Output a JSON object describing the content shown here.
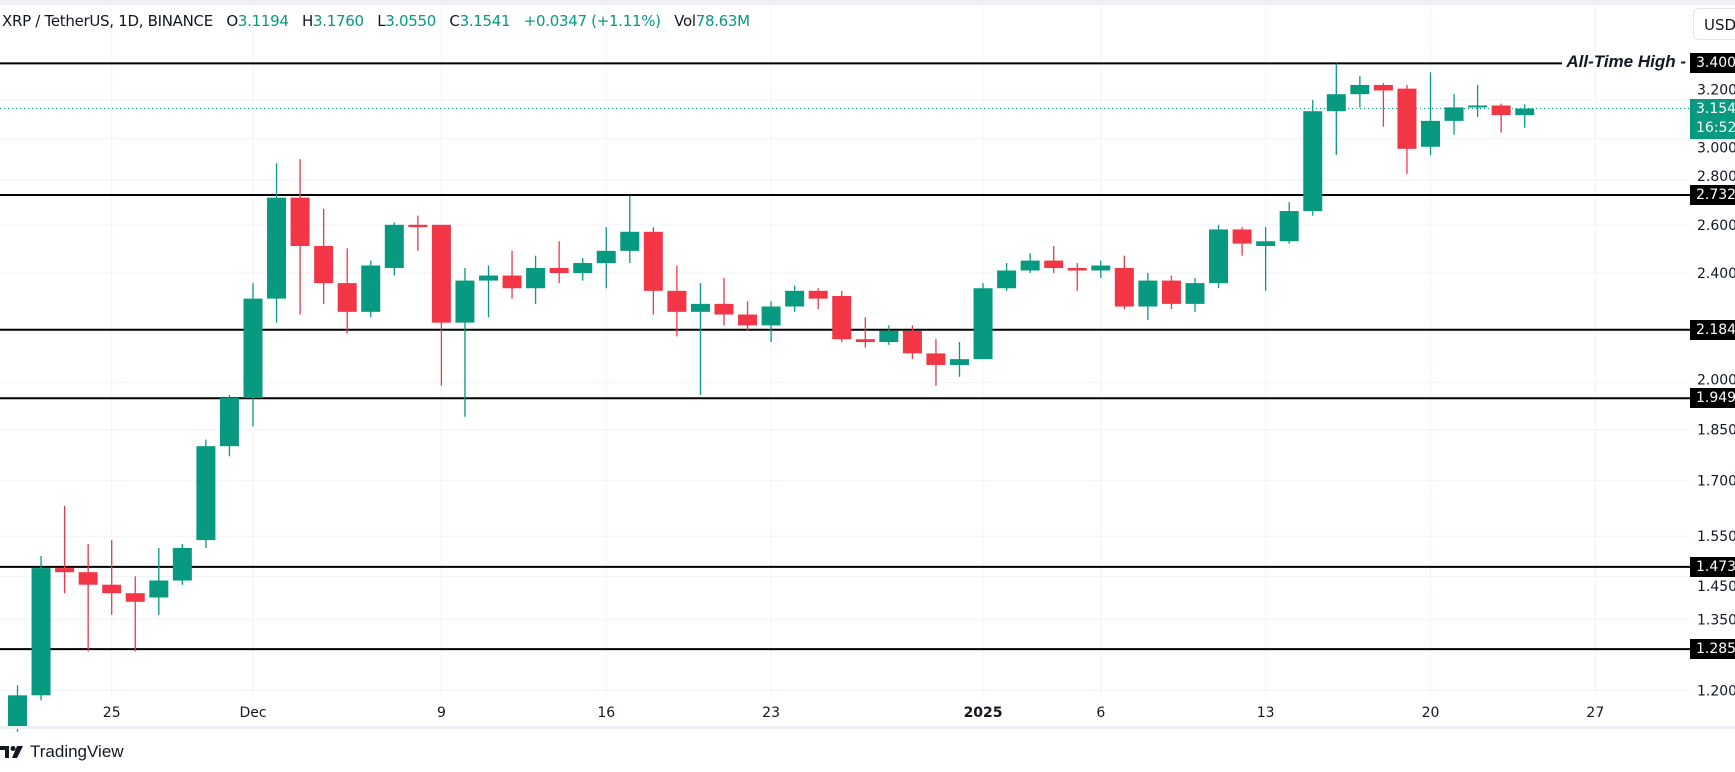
{
  "header": {
    "symbol": "XRP / TetherUS, 1D, BINANCE",
    "open_label": "O",
    "open": "3.1194",
    "high_label": "H",
    "high": "3.1760",
    "low_label": "L",
    "low": "3.0550",
    "close_label": "C",
    "close": "3.1541",
    "change": "+0.0347 (+1.11%)",
    "vol_label": "Vol",
    "vol": "78.63M"
  },
  "currency_button": "USDT",
  "annotation": "All-Time High -",
  "current_price_label": {
    "price": "3.154",
    "countdown": "16:52"
  },
  "branding": "TradingView",
  "colors": {
    "up": "#089981",
    "down": "#f23645",
    "level": "#000000",
    "grid": "#f0f3fa"
  },
  "chart_data": {
    "type": "candlestick",
    "title": "",
    "yscale": "log",
    "ylim": [
      1.13,
      3.45
    ],
    "grid": true,
    "y_ticks": [
      "3.200",
      "3.000",
      "2.800",
      "2.600",
      "2.400",
      "2.000",
      "1.850",
      "1.700",
      "1.550",
      "1.450",
      "1.350",
      "1.200"
    ],
    "x_ticks": [
      {
        "label": "25",
        "date": "2024-11-25"
      },
      {
        "label": "Dec",
        "date": "2024-12-01"
      },
      {
        "label": "9",
        "date": "2024-12-09"
      },
      {
        "label": "16",
        "date": "2024-12-16"
      },
      {
        "label": "23",
        "date": "2024-12-23"
      },
      {
        "label": "2025",
        "date": "2025-01-01",
        "bold": true
      },
      {
        "label": "6",
        "date": "2025-01-06"
      },
      {
        "label": "13",
        "date": "2025-01-13"
      },
      {
        "label": "20",
        "date": "2025-01-20"
      },
      {
        "label": "27",
        "date": "2025-01-27"
      }
    ],
    "levels": [
      {
        "price": 3.4,
        "label": "3.400",
        "note": "All-Time High"
      },
      {
        "price": 2.732,
        "label": "2.732"
      },
      {
        "price": 2.184,
        "label": "2.184"
      },
      {
        "price": 1.949,
        "label": "1.949"
      },
      {
        "price": 1.473,
        "label": "1.473"
      },
      {
        "price": 1.285,
        "label": "1.285"
      }
    ],
    "current_price": 3.1541,
    "columns": [
      "date",
      "open",
      "high",
      "low",
      "close"
    ],
    "candles": [
      [
        "2024-11-21",
        1.13,
        1.21,
        1.12,
        1.19
      ],
      [
        "2024-11-22",
        1.19,
        1.5,
        1.18,
        1.47
      ],
      [
        "2024-11-23",
        1.47,
        1.63,
        1.41,
        1.46
      ],
      [
        "2024-11-24",
        1.46,
        1.53,
        1.28,
        1.43
      ],
      [
        "2024-11-25",
        1.43,
        1.54,
        1.36,
        1.41
      ],
      [
        "2024-11-26",
        1.41,
        1.45,
        1.28,
        1.39
      ],
      [
        "2024-11-27",
        1.4,
        1.52,
        1.36,
        1.44
      ],
      [
        "2024-11-28",
        1.44,
        1.53,
        1.43,
        1.52
      ],
      [
        "2024-11-29",
        1.54,
        1.82,
        1.52,
        1.8
      ],
      [
        "2024-11-30",
        1.8,
        1.96,
        1.77,
        1.95
      ],
      [
        "2024-12-01",
        1.95,
        2.36,
        1.86,
        2.3
      ],
      [
        "2024-12-02",
        2.3,
        2.88,
        2.21,
        2.72
      ],
      [
        "2024-12-03",
        2.72,
        2.9,
        2.24,
        2.51
      ],
      [
        "2024-12-04",
        2.51,
        2.67,
        2.28,
        2.36
      ],
      [
        "2024-12-05",
        2.36,
        2.5,
        2.17,
        2.25
      ],
      [
        "2024-12-06",
        2.25,
        2.45,
        2.23,
        2.43
      ],
      [
        "2024-12-07",
        2.42,
        2.61,
        2.39,
        2.6
      ],
      [
        "2024-12-08",
        2.6,
        2.64,
        2.49,
        2.59
      ],
      [
        "2024-12-09",
        2.6,
        2.6,
        1.99,
        2.21
      ],
      [
        "2024-12-10",
        2.21,
        2.42,
        1.89,
        2.37
      ],
      [
        "2024-12-11",
        2.37,
        2.43,
        2.23,
        2.39
      ],
      [
        "2024-12-12",
        2.39,
        2.49,
        2.3,
        2.34
      ],
      [
        "2024-12-13",
        2.34,
        2.47,
        2.28,
        2.42
      ],
      [
        "2024-12-14",
        2.42,
        2.53,
        2.36,
        2.4
      ],
      [
        "2024-12-15",
        2.4,
        2.46,
        2.37,
        2.44
      ],
      [
        "2024-12-16",
        2.44,
        2.59,
        2.34,
        2.49
      ],
      [
        "2024-12-17",
        2.49,
        2.73,
        2.44,
        2.57
      ],
      [
        "2024-12-18",
        2.57,
        2.59,
        2.24,
        2.33
      ],
      [
        "2024-12-19",
        2.33,
        2.43,
        2.16,
        2.25
      ],
      [
        "2024-12-20",
        2.25,
        2.36,
        1.96,
        2.28
      ],
      [
        "2024-12-21",
        2.28,
        2.38,
        2.2,
        2.24
      ],
      [
        "2024-12-22",
        2.24,
        2.29,
        2.18,
        2.2
      ],
      [
        "2024-12-23",
        2.2,
        2.29,
        2.14,
        2.27
      ],
      [
        "2024-12-24",
        2.27,
        2.35,
        2.25,
        2.33
      ],
      [
        "2024-12-25",
        2.33,
        2.34,
        2.26,
        2.3
      ],
      [
        "2024-12-26",
        2.31,
        2.33,
        2.14,
        2.15
      ],
      [
        "2024-12-27",
        2.15,
        2.23,
        2.12,
        2.14
      ],
      [
        "2024-12-28",
        2.14,
        2.2,
        2.13,
        2.18
      ],
      [
        "2024-12-29",
        2.18,
        2.2,
        2.08,
        2.1
      ],
      [
        "2024-12-30",
        2.1,
        2.15,
        1.99,
        2.06
      ],
      [
        "2024-12-31",
        2.06,
        2.14,
        2.02,
        2.08
      ],
      [
        "2025-01-01",
        2.08,
        2.36,
        2.08,
        2.34
      ],
      [
        "2025-01-02",
        2.34,
        2.44,
        2.33,
        2.41
      ],
      [
        "2025-01-03",
        2.41,
        2.48,
        2.4,
        2.45
      ],
      [
        "2025-01-04",
        2.45,
        2.51,
        2.4,
        2.42
      ],
      [
        "2025-01-05",
        2.42,
        2.44,
        2.33,
        2.41
      ],
      [
        "2025-01-06",
        2.41,
        2.45,
        2.38,
        2.43
      ],
      [
        "2025-01-07",
        2.42,
        2.47,
        2.26,
        2.27
      ],
      [
        "2025-01-08",
        2.27,
        2.4,
        2.22,
        2.37
      ],
      [
        "2025-01-09",
        2.37,
        2.39,
        2.26,
        2.28
      ],
      [
        "2025-01-10",
        2.28,
        2.38,
        2.25,
        2.36
      ],
      [
        "2025-01-11",
        2.36,
        2.6,
        2.34,
        2.58
      ],
      [
        "2025-01-12",
        2.58,
        2.59,
        2.47,
        2.52
      ],
      [
        "2025-01-13",
        2.51,
        2.59,
        2.33,
        2.53
      ],
      [
        "2025-01-14",
        2.53,
        2.7,
        2.52,
        2.66
      ],
      [
        "2025-01-15",
        2.66,
        3.2,
        2.64,
        3.14
      ],
      [
        "2025-01-16",
        3.14,
        3.4,
        2.92,
        3.23
      ],
      [
        "2025-01-17",
        3.23,
        3.33,
        3.16,
        3.28
      ],
      [
        "2025-01-18",
        3.28,
        3.29,
        3.06,
        3.25
      ],
      [
        "2025-01-19",
        3.26,
        3.28,
        2.83,
        2.95
      ],
      [
        "2025-01-20",
        2.96,
        3.35,
        2.92,
        3.09
      ],
      [
        "2025-01-21",
        3.09,
        3.23,
        3.02,
        3.16
      ],
      [
        "2025-01-22",
        3.16,
        3.28,
        3.11,
        3.17
      ],
      [
        "2025-01-23",
        3.17,
        3.18,
        3.03,
        3.12
      ],
      [
        "2025-01-24",
        3.1194,
        3.176,
        3.055,
        3.1541
      ]
    ]
  }
}
